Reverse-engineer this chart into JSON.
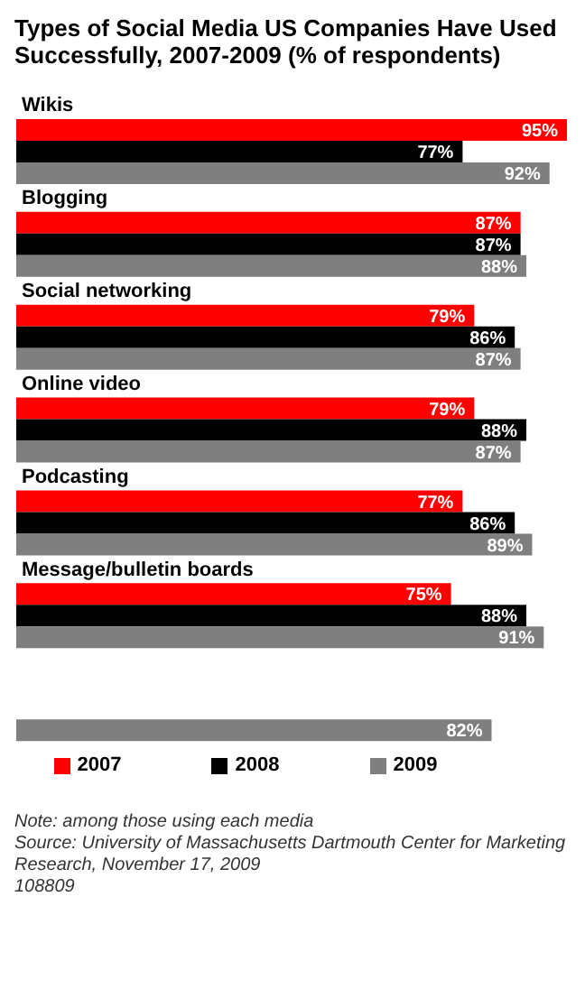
{
  "chart_data": {
    "type": "bar",
    "orientation": "horizontal",
    "title": "Types of Social Media US Companies Have Used Successfully, 2007-2009 (% of respondents)",
    "categories": [
      "Wikis",
      "Blogging",
      "Social networking",
      "Online video",
      "Podcasting",
      "Message/bulletin boards",
      null
    ],
    "series": [
      {
        "name": "2007",
        "color": "#ff0000",
        "values": [
          95,
          87,
          79,
          79,
          77,
          75,
          null
        ],
        "value_labels": [
          "95%",
          "87%",
          "79%",
          "79%",
          "77%",
          "75%",
          null
        ]
      },
      {
        "name": "2008",
        "color": "#000000",
        "values": [
          77,
          87,
          86,
          88,
          86,
          88,
          null
        ],
        "value_labels": [
          "77%",
          "87%",
          "86%",
          "88%",
          "86%",
          "88%",
          null
        ]
      },
      {
        "name": "2009",
        "color": "#7f7f7f",
        "values": [
          92,
          88,
          87,
          87,
          89,
          91,
          82
        ],
        "value_labels": [
          "92%",
          "88%",
          "87%",
          "87%",
          "89%",
          "91%",
          "82%"
        ]
      }
    ],
    "legend": "bottom",
    "annotations": [
      "Note: among those using each media",
      "Source: University of Massachusetts Dartmouth Center for Marketing Research, November 17, 2009",
      "108809"
    ]
  }
}
